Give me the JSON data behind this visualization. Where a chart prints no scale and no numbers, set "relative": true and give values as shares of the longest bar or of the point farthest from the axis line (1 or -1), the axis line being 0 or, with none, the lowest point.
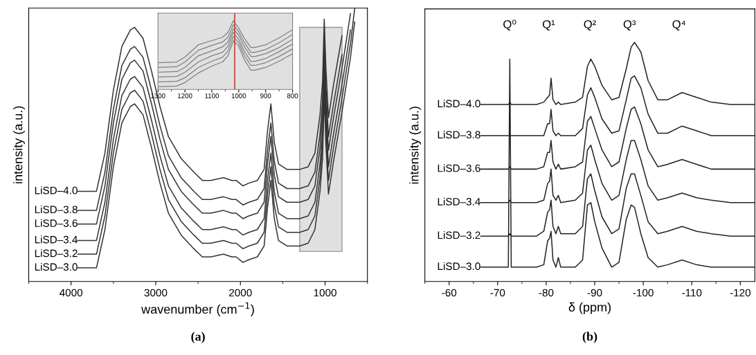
{
  "chart_data": [
    {
      "type": "line",
      "title": "(a)",
      "xlabel": "wavenumber (cm$^{−1}$)",
      "ylabel": "intensity (a.u.)",
      "relative": true,
      "xlim": [
        4500,
        500
      ],
      "xticks": [
        4000,
        3000,
        2000,
        1000
      ],
      "grid": false,
      "legend": false,
      "marker": "none",
      "line_style": "solid",
      "x": [
        3920,
        3750,
        3700,
        3600,
        3500,
        3400,
        3300,
        3250,
        3150,
        3050,
        2950,
        2850,
        2700,
        2550,
        2450,
        2350,
        2200,
        2100,
        2050,
        1970,
        1900,
        1800,
        1720,
        1680,
        1640,
        1600,
        1550,
        1450,
        1300,
        1200,
        1120,
        1060,
        1030,
        1010,
        990,
        960,
        900,
        800,
        700,
        650
      ],
      "bands": [
        {
          "axis": "x",
          "from": 1300,
          "to": 800,
          "color": "#e0e0e0"
        }
      ],
      "series": [
        {
          "name": "LiSD–4.0",
          "color": "#333333",
          "values": [
            0.33,
            0.33,
            0.33,
            0.47,
            0.7,
            0.86,
            0.92,
            0.93,
            0.89,
            0.77,
            0.64,
            0.53,
            0.45,
            0.4,
            0.37,
            0.37,
            0.38,
            0.37,
            0.37,
            0.35,
            0.36,
            0.37,
            0.41,
            0.55,
            0.65,
            0.51,
            0.43,
            0.41,
            0.41,
            0.42,
            0.47,
            0.61,
            0.73,
            0.96,
            0.78,
            0.6,
            0.72,
            0.9,
            null,
            null
          ]
        },
        {
          "name": "LiSD–3.8",
          "color": "#333333",
          "values": [
            0.26,
            0.26,
            0.26,
            0.4,
            0.63,
            0.79,
            0.85,
            0.86,
            0.82,
            0.7,
            0.57,
            0.46,
            0.38,
            0.33,
            0.3,
            0.3,
            0.31,
            0.3,
            0.3,
            0.28,
            0.29,
            0.3,
            0.34,
            0.48,
            0.58,
            0.44,
            0.36,
            0.34,
            0.34,
            0.35,
            0.4,
            0.54,
            0.66,
            0.89,
            0.71,
            0.53,
            0.65,
            0.83,
            null,
            null
          ]
        },
        {
          "name": "LiSD–3.6",
          "color": "#333333",
          "values": [
            0.21,
            0.21,
            0.21,
            0.35,
            0.58,
            0.74,
            0.8,
            0.81,
            0.77,
            0.65,
            0.52,
            0.41,
            0.33,
            0.28,
            0.25,
            0.25,
            0.26,
            0.25,
            0.25,
            0.23,
            0.24,
            0.25,
            0.29,
            0.43,
            0.53,
            0.39,
            0.31,
            0.29,
            0.29,
            0.3,
            0.35,
            0.49,
            0.61,
            0.84,
            0.66,
            0.48,
            0.6,
            0.78,
            0.98,
            null
          ]
        },
        {
          "name": "LiSD–3.4",
          "color": "#333333",
          "values": [
            0.15,
            0.15,
            0.15,
            0.29,
            0.52,
            0.68,
            0.74,
            0.75,
            0.71,
            0.59,
            0.46,
            0.35,
            0.27,
            0.22,
            0.19,
            0.19,
            0.2,
            0.19,
            0.19,
            0.17,
            0.18,
            0.19,
            0.23,
            0.37,
            0.47,
            0.33,
            0.25,
            0.23,
            0.23,
            0.24,
            0.29,
            0.43,
            0.55,
            0.78,
            0.6,
            0.42,
            0.54,
            0.72,
            0.92,
            null
          ]
        },
        {
          "name": "LiSD–3.2",
          "color": "#333333",
          "values": [
            0.1,
            0.1,
            0.1,
            0.24,
            0.47,
            0.63,
            0.69,
            0.7,
            0.66,
            0.54,
            0.41,
            0.3,
            0.22,
            0.17,
            0.14,
            0.14,
            0.15,
            0.14,
            0.14,
            0.12,
            0.13,
            0.14,
            0.18,
            0.32,
            0.42,
            0.28,
            0.2,
            0.18,
            0.18,
            0.19,
            0.24,
            0.38,
            0.5,
            0.73,
            0.55,
            0.37,
            0.49,
            0.67,
            0.87,
            1.0
          ]
        },
        {
          "name": "LiSD–3.0",
          "color": "#333333",
          "values": [
            0.05,
            0.05,
            0.05,
            0.19,
            0.42,
            0.58,
            0.64,
            0.65,
            0.61,
            0.49,
            0.36,
            0.25,
            0.17,
            0.12,
            0.09,
            0.09,
            0.1,
            0.09,
            0.09,
            0.07,
            0.08,
            0.09,
            0.13,
            0.27,
            0.37,
            0.23,
            0.15,
            0.13,
            0.13,
            0.14,
            0.19,
            0.33,
            0.45,
            0.68,
            0.5,
            0.32,
            0.44,
            0.62,
            0.82,
            0.95
          ]
        }
      ]
    },
    {
      "type": "line",
      "relative": true,
      "xlim": [
        1300,
        800
      ],
      "xticks": [
        1300,
        1200,
        1100,
        1000,
        900,
        800
      ],
      "grid": false,
      "legend": false,
      "marker": "none",
      "line_style": "solid",
      "x": [
        1300,
        1230,
        1200,
        1150,
        1100,
        1060,
        1040,
        1020,
        1000,
        980,
        955,
        940,
        900,
        850,
        800
      ],
      "ref_lines": [
        {
          "axis": "x",
          "value": 1015,
          "color": "#e03030"
        }
      ],
      "series": [
        {
          "color": "#808080",
          "values": [
            0.39,
            0.4,
            0.47,
            0.65,
            0.71,
            0.76,
            0.83,
            1.0,
            0.89,
            0.75,
            0.61,
            0.61,
            0.65,
            0.75,
            0.87
          ]
        },
        {
          "color": "#808080",
          "values": [
            0.32,
            0.33,
            0.4,
            0.57,
            0.64,
            0.69,
            0.76,
            0.94,
            0.84,
            0.69,
            0.54,
            0.54,
            0.58,
            0.68,
            0.8
          ]
        },
        {
          "color": "#808080",
          "values": [
            0.25,
            0.26,
            0.32,
            0.49,
            0.56,
            0.62,
            0.69,
            0.88,
            0.79,
            0.63,
            0.48,
            0.48,
            0.52,
            0.61,
            0.73
          ]
        },
        {
          "color": "#808080",
          "values": [
            0.18,
            0.19,
            0.25,
            0.4,
            0.49,
            0.54,
            0.63,
            0.83,
            0.73,
            0.56,
            0.41,
            0.41,
            0.45,
            0.55,
            0.66
          ]
        },
        {
          "color": "#808080",
          "values": [
            0.11,
            0.12,
            0.17,
            0.32,
            0.41,
            0.47,
            0.56,
            0.77,
            0.68,
            0.5,
            0.35,
            0.35,
            0.39,
            0.48,
            0.59
          ]
        },
        {
          "color": "#808080",
          "values": [
            0.04,
            0.05,
            0.1,
            0.24,
            0.34,
            0.4,
            0.49,
            0.71,
            0.63,
            0.44,
            0.28,
            0.28,
            0.32,
            0.41,
            0.52
          ]
        }
      ]
    },
    {
      "type": "line",
      "title": "(b)",
      "xlabel": "δ (ppm)",
      "ylabel": "intensity (a.u.)",
      "relative": true,
      "xlim": [
        -55,
        -123
      ],
      "xticks": [
        -60,
        -70,
        -80,
        -90,
        -100,
        -110,
        -120
      ],
      "grid": false,
      "legend": false,
      "marker": "none",
      "line_style": "solid",
      "annotations": [
        "Q⁰",
        "Q¹",
        "Q²",
        "Q³",
        "Q⁴"
      ],
      "x": [
        -66.5,
        -69,
        -72.2,
        -72.5,
        -72.8,
        -78,
        -79.5,
        -80.3,
        -80.7,
        -81.0,
        -81.4,
        -82.0,
        -82.5,
        -83,
        -86,
        -87.5,
        -88.5,
        -89.2,
        -90,
        -91.5,
        -93.5,
        -95,
        -96.5,
        -97.5,
        -98.2,
        -99.5,
        -101,
        -103,
        -105,
        -108,
        -111,
        -114,
        -118,
        -123
      ],
      "series": [
        {
          "name": "LiSD–4.0",
          "color": "#222222",
          "values": [
            0.74,
            0.74,
            0.74,
            0.75,
            0.74,
            0.74,
            0.75,
            0.77,
            0.78,
            0.85,
            0.76,
            0.74,
            0.75,
            0.74,
            0.75,
            0.77,
            0.9,
            0.93,
            0.9,
            0.82,
            0.76,
            0.77,
            0.89,
            0.98,
            1.0,
            0.96,
            0.84,
            0.76,
            0.76,
            0.79,
            0.77,
            0.75,
            0.74,
            0.74
          ]
        },
        {
          "name": "LiSD–3.8",
          "color": "#222222",
          "values": [
            0.61,
            0.61,
            0.61,
            0.61,
            0.61,
            0.61,
            0.61,
            0.66,
            0.66,
            0.72,
            0.63,
            0.61,
            0.62,
            0.61,
            0.61,
            0.64,
            0.78,
            0.81,
            0.77,
            0.68,
            0.62,
            0.63,
            0.76,
            0.85,
            0.86,
            0.81,
            0.7,
            0.62,
            0.62,
            0.65,
            0.63,
            0.61,
            0.61,
            0.61
          ]
        },
        {
          "name": "LiSD–3.6",
          "color": "#222222",
          "values": [
            0.47,
            0.47,
            0.47,
            0.48,
            0.47,
            0.47,
            0.48,
            0.54,
            0.54,
            0.59,
            0.5,
            0.47,
            0.49,
            0.47,
            0.48,
            0.5,
            0.67,
            0.69,
            0.64,
            0.55,
            0.48,
            0.5,
            0.64,
            0.72,
            0.73,
            0.66,
            0.55,
            0.48,
            0.49,
            0.51,
            0.49,
            0.47,
            0.47,
            0.47
          ]
        },
        {
          "name": "LiSD–3.4",
          "color": "#222222",
          "values": [
            0.33,
            0.33,
            0.33,
            0.34,
            0.33,
            0.33,
            0.34,
            0.41,
            0.42,
            0.47,
            0.36,
            0.34,
            0.36,
            0.33,
            0.34,
            0.37,
            0.55,
            0.57,
            0.51,
            0.41,
            0.34,
            0.36,
            0.51,
            0.59,
            0.59,
            0.51,
            0.4,
            0.34,
            0.35,
            0.37,
            0.35,
            0.34,
            0.33,
            0.33
          ]
        },
        {
          "name": "LiSD–3.2",
          "color": "#222222",
          "values": [
            0.19,
            0.19,
            0.19,
            0.2,
            0.19,
            0.19,
            0.21,
            0.29,
            0.3,
            0.34,
            0.23,
            0.2,
            0.23,
            0.2,
            0.2,
            0.23,
            0.43,
            0.45,
            0.38,
            0.27,
            0.2,
            0.22,
            0.39,
            0.45,
            0.45,
            0.36,
            0.25,
            0.2,
            0.21,
            0.23,
            0.21,
            0.2,
            0.19,
            0.19
          ]
        },
        {
          "name": "LiSD–3.0",
          "color": "#222222",
          "values": [
            0.06,
            0.06,
            0.06,
            0.93,
            0.06,
            0.06,
            0.07,
            0.17,
            0.18,
            0.21,
            0.09,
            0.06,
            0.1,
            0.06,
            0.06,
            0.09,
            0.32,
            0.33,
            0.25,
            0.14,
            0.06,
            0.08,
            0.26,
            0.32,
            0.31,
            0.2,
            0.1,
            0.06,
            0.07,
            0.09,
            0.07,
            0.06,
            0.06,
            0.06
          ]
        }
      ]
    }
  ]
}
